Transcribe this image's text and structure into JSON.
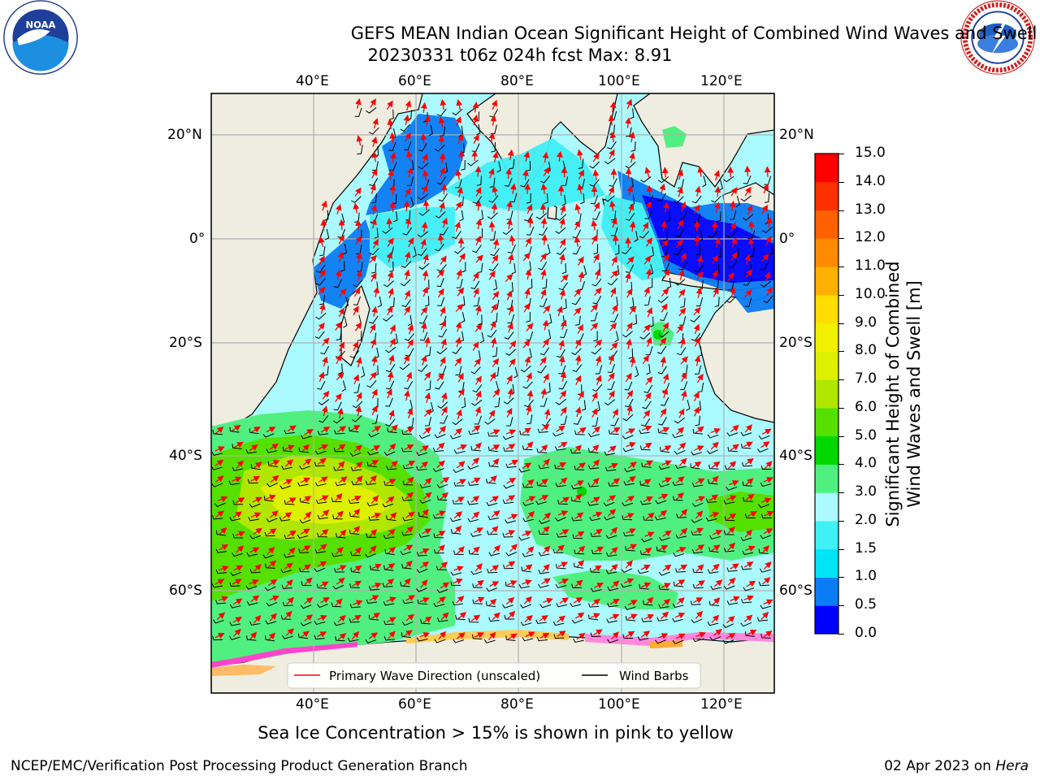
{
  "title": {
    "line1": "GEFS MEAN Indian Ocean Significant Height of Combined Wind Waves and Swell",
    "line2": "20230331 t06z 024h fcst   Max: 8.91"
  },
  "logos": {
    "left": {
      "name": "noaa-logo",
      "text": "NOAA",
      "ring": "NATIONAL OCEANIC AND ATMOSPHERIC ADMINISTRATION · U.S. DEPARTMENT OF COMMERCE"
    },
    "right": {
      "name": "nws-logo",
      "ring": "NATIONAL WEATHER SERVICE"
    }
  },
  "map": {
    "lon_ticks_top": [
      "40°E",
      "60°E",
      "80°E",
      "100°E",
      "120°E"
    ],
    "lon_ticks_bottom": [
      "40°E",
      "60°E",
      "80°E",
      "100°E",
      "120°E"
    ],
    "lat_ticks_left": [
      "20°N",
      "0°",
      "20°S",
      "40°S",
      "60°S"
    ],
    "lat_ticks_right": [
      "20°N",
      "0°",
      "20°S",
      "40°S",
      "60°S"
    ],
    "legend": {
      "wave_dir": "Primary Wave Direction (unscaled)",
      "wind_barbs": "Wind Barbs"
    },
    "land_color": "#efede0",
    "max_value": 8.91
  },
  "colorbar": {
    "label_line1": "Significant Height of Combined",
    "label_line2": "Wind Waves and Swell [m]",
    "ticks": [
      "0.0",
      "0.5",
      "1.0",
      "1.5",
      "2.0",
      "3.0",
      "4.0",
      "5.0",
      "6.0",
      "7.0",
      "8.0",
      "9.0",
      "10.0",
      "11.0",
      "12.0",
      "13.0",
      "14.0",
      "15.0"
    ],
    "colors": [
      "#0000ff",
      "#0a7cf5",
      "#00e5f5",
      "#3ff0f5",
      "#aafaff",
      "#50f080",
      "#00d800",
      "#55e000",
      "#b0e600",
      "#dcf000",
      "#f0f000",
      "#ffdd00",
      "#ffb000",
      "#ff8c00",
      "#ff6000",
      "#ff3000",
      "#ff0000"
    ]
  },
  "subtitle": "Sea Ice Concentration > 15% is shown in pink to yellow",
  "footer": {
    "left": "NCEP/EMC/Verification Post Processing Product Generation Branch",
    "right_date": "02 Apr 2023 on ",
    "right_host": "Hera"
  }
}
